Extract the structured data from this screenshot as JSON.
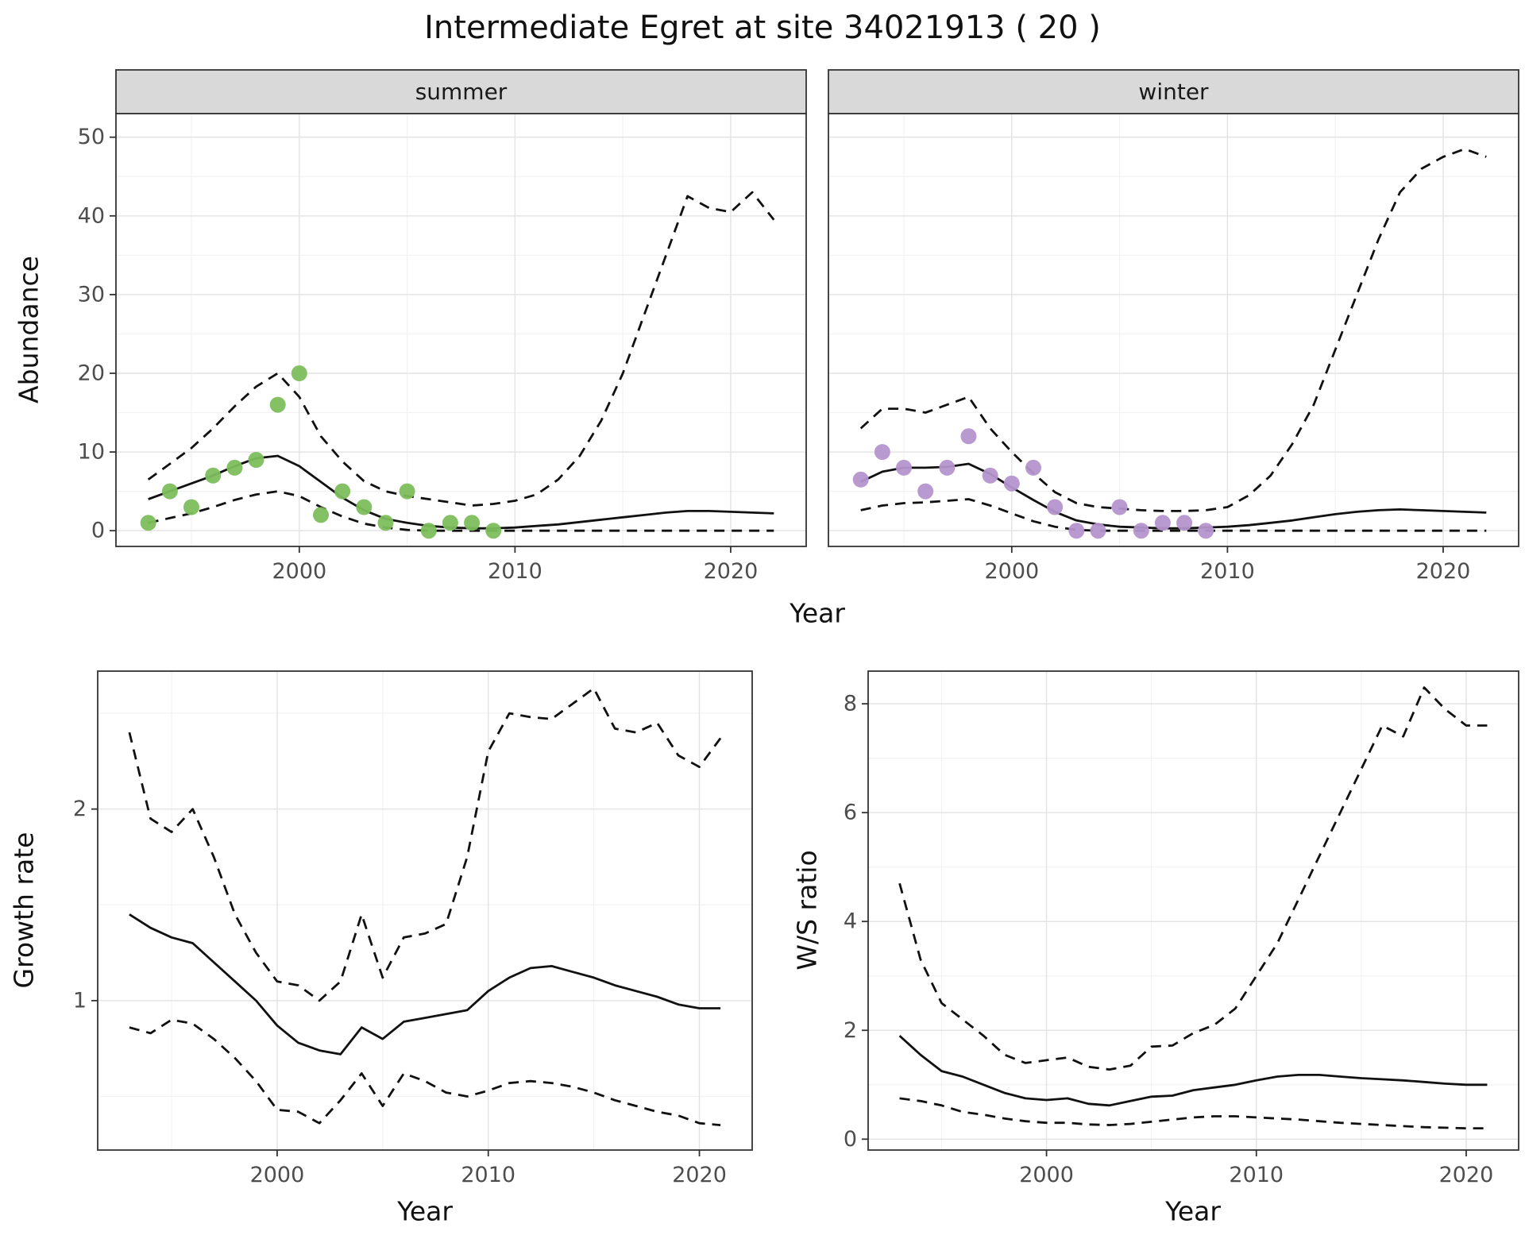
{
  "title": "Intermediate Egret at site 34021913 ( 20 )",
  "colors": {
    "line": "#111111",
    "grid_major": "#e4e4e4",
    "grid_minor": "#f2f2f2",
    "panel_border": "#333333",
    "strip_bg": "#d9d9d9",
    "strip_text": "#1a1a1a",
    "tick_text": "#4d4d4d",
    "summer_points": "#7cbe5c",
    "winter_points": "#b495cd"
  },
  "chart_data": [
    {
      "type": "line",
      "facet_label": "summer",
      "xlabel": "Year",
      "ylabel": "Abundance",
      "xlim": [
        1991.5,
        2023.5
      ],
      "ylim": [
        -2,
        53
      ],
      "xticks": [
        2000,
        2010,
        2020
      ],
      "xticks_minor": [
        1995,
        2005,
        2015
      ],
      "yticks": [
        0,
        10,
        20,
        30,
        40,
        50
      ],
      "yticks_minor": [
        5,
        15,
        25,
        35,
        45
      ],
      "x": [
        1993,
        1994,
        1995,
        1996,
        1997,
        1998,
        1999,
        2000,
        2001,
        2002,
        2003,
        2004,
        2005,
        2006,
        2007,
        2008,
        2009,
        2010,
        2011,
        2012,
        2013,
        2014,
        2015,
        2016,
        2017,
        2018,
        2019,
        2020,
        2021,
        2022
      ],
      "series": [
        {
          "name": "mean-fit",
          "style": "solid",
          "y": [
            4.0,
            5.0,
            6.0,
            7.0,
            8.2,
            9.2,
            9.5,
            8.2,
            6.2,
            4.2,
            2.6,
            1.5,
            1.0,
            0.6,
            0.4,
            0.3,
            0.3,
            0.4,
            0.6,
            0.8,
            1.1,
            1.4,
            1.7,
            2.0,
            2.3,
            2.5,
            2.5,
            2.4,
            2.3,
            2.2
          ]
        },
        {
          "name": "lower-ci",
          "style": "dashed",
          "y": [
            1.0,
            1.6,
            2.2,
            3.0,
            3.9,
            4.6,
            5.0,
            4.4,
            3.0,
            1.8,
            0.9,
            0.4,
            0.1,
            0,
            0,
            0,
            0,
            0,
            0,
            0,
            0,
            0,
            0,
            0,
            0,
            0,
            0,
            0,
            0,
            0
          ]
        },
        {
          "name": "upper-ci",
          "style": "dashed",
          "y": [
            6.5,
            8.5,
            10.5,
            13,
            15.8,
            18.3,
            20,
            17,
            12,
            8.8,
            6.3,
            5,
            4.4,
            4,
            3.6,
            3.2,
            3.4,
            3.8,
            4.6,
            6.5,
            9.5,
            14,
            20,
            27.5,
            35,
            42.5,
            41,
            40.5,
            43,
            39.5
          ]
        },
        {
          "name": "observed-summer",
          "style": "points",
          "color": "#7cbe5c",
          "x": [
            1993,
            1994,
            1995,
            1996,
            1997,
            1998,
            1999,
            2000,
            2001,
            2002,
            2003,
            2004,
            2005,
            2006,
            2007,
            2008,
            2009
          ],
          "y": [
            1,
            5,
            3,
            7,
            8,
            9,
            16,
            20,
            2,
            5,
            3,
            1,
            5,
            0,
            1,
            1,
            0
          ]
        }
      ]
    },
    {
      "type": "line",
      "facet_label": "winter",
      "xlabel": "Year",
      "ylabel": "Abundance",
      "xlim": [
        1991.5,
        2023.5
      ],
      "ylim": [
        -2,
        53
      ],
      "xticks": [
        2000,
        2010,
        2020
      ],
      "xticks_minor": [
        1995,
        2005,
        2015
      ],
      "yticks": [
        0,
        10,
        20,
        30,
        40,
        50
      ],
      "yticks_minor": [
        5,
        15,
        25,
        35,
        45
      ],
      "x": [
        1993,
        1994,
        1995,
        1996,
        1997,
        1998,
        1999,
        2000,
        2001,
        2002,
        2003,
        2004,
        2005,
        2006,
        2007,
        2008,
        2009,
        2010,
        2011,
        2012,
        2013,
        2014,
        2015,
        2016,
        2017,
        2018,
        2019,
        2020,
        2021,
        2022
      ],
      "series": [
        {
          "name": "mean-fit",
          "style": "solid",
          "y": [
            6.2,
            7.5,
            8.0,
            8.0,
            8.1,
            8.5,
            7.2,
            5.5,
            3.9,
            2.4,
            1.3,
            0.8,
            0.5,
            0.4,
            0.3,
            0.3,
            0.4,
            0.5,
            0.7,
            1.0,
            1.3,
            1.7,
            2.1,
            2.4,
            2.6,
            2.7,
            2.6,
            2.5,
            2.4,
            2.3
          ]
        },
        {
          "name": "lower-ci",
          "style": "dashed",
          "y": [
            2.6,
            3.2,
            3.5,
            3.6,
            3.8,
            4.0,
            3.2,
            2.2,
            1.2,
            0.5,
            0.1,
            0,
            0,
            0,
            0,
            0,
            0,
            0,
            0,
            0,
            0,
            0,
            0,
            0,
            0,
            0,
            0,
            0,
            0,
            0
          ]
        },
        {
          "name": "upper-ci",
          "style": "dashed",
          "y": [
            13,
            15.5,
            15.5,
            15,
            16,
            17,
            13,
            10,
            7.3,
            4.9,
            3.5,
            3.0,
            2.8,
            2.6,
            2.5,
            2.5,
            2.6,
            3.0,
            4.5,
            7,
            11,
            16,
            23,
            30,
            37,
            43,
            46,
            47.5,
            48.5,
            47.5
          ]
        },
        {
          "name": "observed-winter",
          "style": "points",
          "color": "#b495cd",
          "x": [
            1993,
            1994,
            1995,
            1996,
            1997,
            1998,
            1999,
            2000,
            2001,
            2002,
            2003,
            2004,
            2005,
            2006,
            2007,
            2008,
            2009
          ],
          "y": [
            6.5,
            10,
            8,
            5,
            8,
            12,
            7,
            6,
            8,
            3,
            0,
            0,
            3,
            0,
            1,
            1,
            0
          ]
        }
      ]
    },
    {
      "type": "line",
      "facet_label": "",
      "xlabel": "Year",
      "ylabel": "Growth rate",
      "xlim": [
        1991.5,
        2022.5
      ],
      "ylim": [
        0.22,
        2.72
      ],
      "xticks": [
        2000,
        2010,
        2020
      ],
      "xticks_minor": [
        1995,
        2005,
        2015
      ],
      "yticks": [
        1,
        2
      ],
      "yticks_minor": [
        0.5,
        1.5,
        2.5
      ],
      "x": [
        1993,
        1994,
        1995,
        1996,
        1997,
        1998,
        1999,
        2000,
        2001,
        2002,
        2003,
        2004,
        2005,
        2006,
        2007,
        2008,
        2009,
        2010,
        2011,
        2012,
        2013,
        2014,
        2015,
        2016,
        2017,
        2018,
        2019,
        2020,
        2021
      ],
      "series": [
        {
          "name": "mean-fit",
          "style": "solid",
          "y": [
            1.45,
            1.38,
            1.33,
            1.3,
            1.2,
            1.1,
            1.0,
            0.87,
            0.78,
            0.74,
            0.72,
            0.86,
            0.8,
            0.89,
            0.91,
            0.93,
            0.95,
            1.05,
            1.12,
            1.17,
            1.18,
            1.15,
            1.12,
            1.08,
            1.05,
            1.02,
            0.98,
            0.96,
            0.96
          ]
        },
        {
          "name": "upper-ci",
          "style": "dashed",
          "y": [
            2.4,
            1.95,
            1.88,
            2.0,
            1.75,
            1.45,
            1.25,
            1.1,
            1.08,
            1.0,
            1.1,
            1.45,
            1.12,
            1.33,
            1.35,
            1.4,
            1.75,
            2.3,
            2.5,
            2.48,
            2.47,
            2.55,
            2.63,
            2.42,
            2.4,
            2.45,
            2.28,
            2.22,
            2.37
          ]
        },
        {
          "name": "lower-ci",
          "style": "dashed",
          "y": [
            0.86,
            0.83,
            0.9,
            0.88,
            0.8,
            0.7,
            0.58,
            0.43,
            0.42,
            0.36,
            0.48,
            0.62,
            0.45,
            0.62,
            0.58,
            0.52,
            0.5,
            0.53,
            0.57,
            0.58,
            0.57,
            0.55,
            0.52,
            0.48,
            0.45,
            0.42,
            0.4,
            0.36,
            0.35
          ]
        }
      ]
    },
    {
      "type": "line",
      "facet_label": "",
      "xlabel": "Year",
      "ylabel": "W/S ratio",
      "xlim": [
        1991.5,
        2022.5
      ],
      "ylim": [
        -0.2,
        8.6
      ],
      "xticks": [
        2000,
        2010,
        2020
      ],
      "xticks_minor": [
        1995,
        2005,
        2015
      ],
      "yticks": [
        0,
        2,
        4,
        6,
        8
      ],
      "yticks_minor": [
        1,
        3,
        5,
        7
      ],
      "x": [
        1993,
        1994,
        1995,
        1996,
        1997,
        1998,
        1999,
        2000,
        2001,
        2002,
        2003,
        2004,
        2005,
        2006,
        2007,
        2008,
        2009,
        2010,
        2011,
        2012,
        2013,
        2014,
        2015,
        2016,
        2017,
        2018,
        2019,
        2020,
        2021
      ],
      "series": [
        {
          "name": "mean-fit",
          "style": "solid",
          "y": [
            1.9,
            1.55,
            1.25,
            1.15,
            1.0,
            0.85,
            0.75,
            0.72,
            0.75,
            0.65,
            0.62,
            0.7,
            0.78,
            0.8,
            0.9,
            0.95,
            1.0,
            1.08,
            1.15,
            1.18,
            1.18,
            1.15,
            1.12,
            1.1,
            1.08,
            1.05,
            1.02,
            1.0,
            1.0
          ]
        },
        {
          "name": "upper-ci",
          "style": "dashed",
          "y": [
            4.7,
            3.3,
            2.5,
            2.2,
            1.9,
            1.55,
            1.4,
            1.45,
            1.5,
            1.33,
            1.28,
            1.35,
            1.7,
            1.72,
            1.95,
            2.1,
            2.4,
            3.0,
            3.6,
            4.4,
            5.2,
            6.0,
            6.8,
            7.6,
            7.4,
            8.3,
            7.9,
            7.6,
            7.6
          ]
        },
        {
          "name": "lower-ci",
          "style": "dashed",
          "y": [
            0.75,
            0.7,
            0.62,
            0.5,
            0.45,
            0.38,
            0.33,
            0.3,
            0.3,
            0.27,
            0.26,
            0.28,
            0.32,
            0.36,
            0.4,
            0.42,
            0.42,
            0.4,
            0.38,
            0.36,
            0.33,
            0.3,
            0.28,
            0.26,
            0.24,
            0.22,
            0.21,
            0.2,
            0.2
          ]
        }
      ]
    }
  ]
}
